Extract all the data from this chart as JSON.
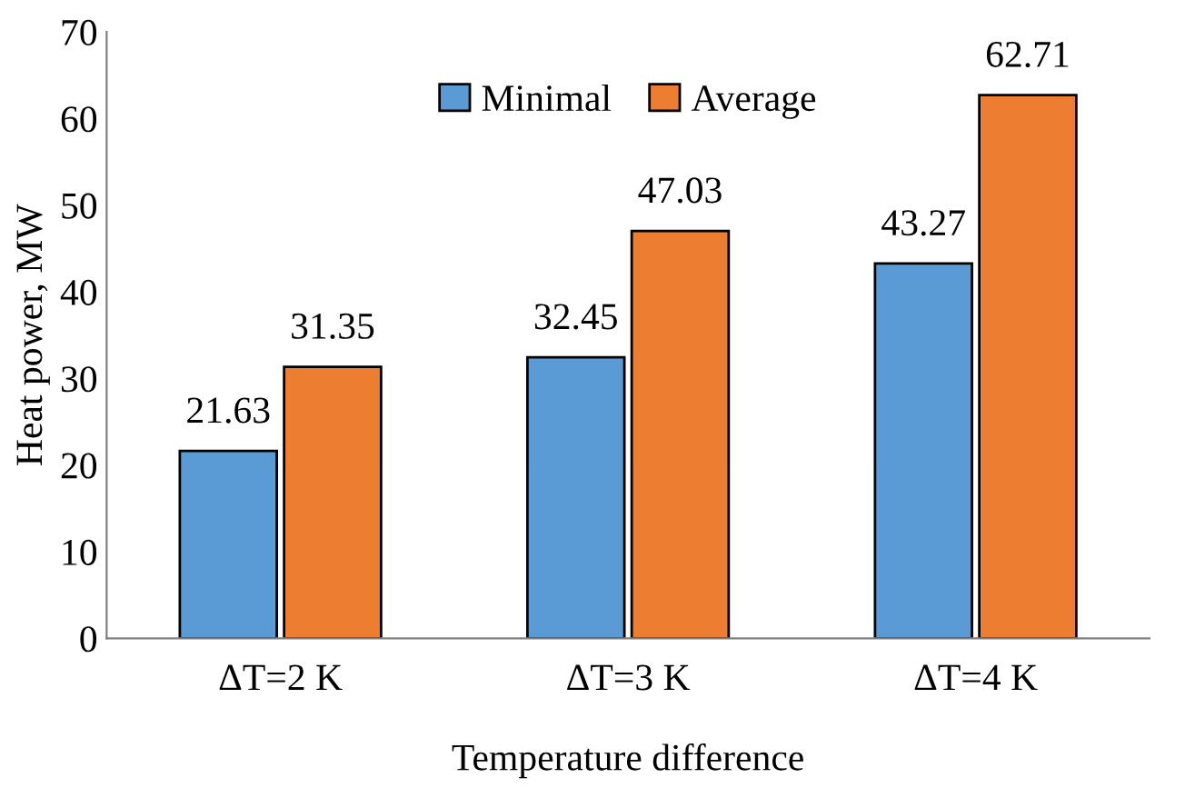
{
  "chart_data": {
    "type": "bar",
    "xlabel": "Temperature difference",
    "ylabel": "Heat power, MW",
    "categories": [
      "ΔT=2 K",
      "ΔT=3 K",
      "ΔT=4 K"
    ],
    "series": [
      {
        "name": "Minimal",
        "color": "#5b9bd5",
        "values": [
          21.63,
          32.45,
          43.27
        ]
      },
      {
        "name": "Average",
        "color": "#ed7d31",
        "values": [
          31.35,
          47.03,
          62.71
        ]
      }
    ],
    "ylim": [
      0,
      70
    ],
    "yticks": [
      0,
      10,
      20,
      30,
      40,
      50,
      60,
      70
    ],
    "grid": false,
    "legend": "top",
    "data_labels": true
  }
}
